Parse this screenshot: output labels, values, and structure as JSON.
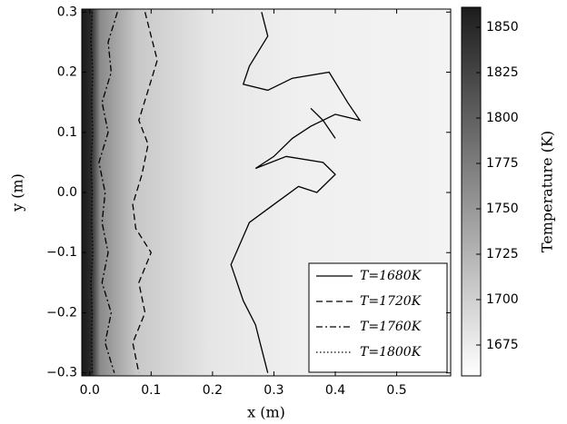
{
  "chart_data": {
    "type": "contour",
    "xlabel": "x (m)",
    "ylabel": "y (m)",
    "xlim": [
      -0.013,
      0.588
    ],
    "ylim": [
      -0.305,
      0.305
    ],
    "xticks": [
      {
        "value": 0,
        "label": "0.0"
      },
      0.1,
      0.2,
      0.3,
      0.4,
      0.5
    ],
    "yticks": [
      {
        "value": -0.3,
        "label": "−0.3"
      },
      {
        "value": -0.2,
        "label": "−0.2"
      },
      {
        "value": -0.1,
        "label": "−0.1"
      },
      {
        "value": 0,
        "label": "0.0"
      },
      0.1,
      0.2,
      0.3
    ],
    "legend": "lower right",
    "series": [
      {
        "name": "T=1680K",
        "color": "#000000",
        "linestyle": "solid",
        "x": [
          0.28,
          0.29,
          0.26,
          0.25,
          0.29,
          0.33,
          0.39,
          0.42,
          0.44,
          0.4,
          0.36,
          0.33,
          0.3,
          0.27,
          0.32,
          0.38,
          0.4,
          0.37,
          0.34,
          0.3,
          0.26,
          0.23,
          0.25,
          0.27,
          0.28,
          0.29,
          null,
          0.36,
          0.38,
          0.4
        ],
        "y": [
          0.3,
          0.26,
          0.21,
          0.18,
          0.17,
          0.19,
          0.2,
          0.15,
          0.12,
          0.13,
          0.11,
          0.09,
          0.06,
          0.04,
          0.06,
          0.05,
          0.03,
          0.0,
          0.01,
          -0.02,
          -0.05,
          -0.12,
          -0.18,
          -0.22,
          -0.26,
          -0.3,
          null,
          0.14,
          0.12,
          0.09
        ]
      },
      {
        "name": "T=1720K",
        "color": "#000000",
        "linestyle": "dashed",
        "x": [
          0.09,
          0.1,
          0.11,
          0.095,
          0.08,
          0.095,
          0.085,
          0.07,
          0.075,
          0.1,
          0.08,
          0.09,
          0.07,
          0.08
        ],
        "y": [
          0.3,
          0.26,
          0.22,
          0.17,
          0.12,
          0.08,
          0.03,
          -0.02,
          -0.06,
          -0.1,
          -0.15,
          -0.2,
          -0.25,
          -0.3
        ]
      },
      {
        "name": "T=1760K",
        "color": "#000000",
        "linestyle": "dashdot",
        "x": [
          0.045,
          0.03,
          0.035,
          0.02,
          0.03,
          0.015,
          0.025,
          0.02,
          0.03,
          0.02,
          0.035,
          0.025,
          0.04
        ],
        "y": [
          0.3,
          0.25,
          0.2,
          0.15,
          0.1,
          0.05,
          0,
          -0.05,
          -0.1,
          -0.15,
          -0.2,
          -0.25,
          -0.3
        ]
      },
      {
        "name": "T=1800K",
        "color": "#000000",
        "linestyle": "dotted",
        "x": [
          0.004,
          0.002,
          0.005,
          0.003,
          0.005,
          0.002,
          0.004,
          0.003,
          0.005,
          0.002,
          0.004,
          0.003,
          0.004
        ],
        "y": [
          0.3,
          0.25,
          0.2,
          0.15,
          0.1,
          0.05,
          0,
          -0.05,
          -0.1,
          -0.15,
          -0.2,
          -0.25,
          -0.3
        ]
      }
    ],
    "colorbar": {
      "label": "Temperature (K)",
      "lim": [
        1658,
        1861
      ],
      "ticks": [
        1675,
        1700,
        1725,
        1750,
        1775,
        1800,
        1825,
        1850
      ],
      "colors": [
        "#ffffff",
        "#1c1c1c"
      ]
    }
  }
}
